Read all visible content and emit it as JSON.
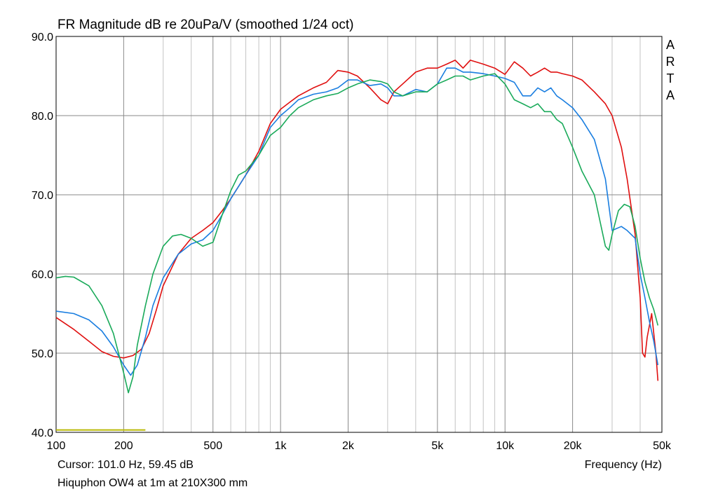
{
  "chart_data": {
    "type": "line",
    "title": "FR Magnitude dB re 20uPa/V (smoothed 1/24 oct)",
    "watermark": [
      "A",
      "R",
      "T",
      "A"
    ],
    "xlabel": "Frequency (Hz)",
    "xscale": "log",
    "xlim": [
      100,
      50000
    ],
    "ylim": [
      40,
      90
    ],
    "grid": true,
    "xticks": [
      {
        "value": 100,
        "label": "100"
      },
      {
        "value": 200,
        "label": "200"
      },
      {
        "value": 500,
        "label": "500"
      },
      {
        "value": 1000,
        "label": "1k"
      },
      {
        "value": 2000,
        "label": "2k"
      },
      {
        "value": 5000,
        "label": "5k"
      },
      {
        "value": 10000,
        "label": "10k"
      },
      {
        "value": 20000,
        "label": "20k"
      },
      {
        "value": 50000,
        "label": "50k"
      }
    ],
    "yticks": [
      {
        "value": 40,
        "label": "40.0"
      },
      {
        "value": 50,
        "label": "50.0"
      },
      {
        "value": 60,
        "label": "60.0"
      },
      {
        "value": 70,
        "label": "70.0"
      },
      {
        "value": 80,
        "label": "80.0"
      },
      {
        "value": 90,
        "label": "90.0"
      }
    ],
    "cursor": "Cursor: 101.0 Hz, 59.45 dB",
    "footer": "Hiquphon OW4 at 1m at 210X300 mm",
    "reference_line": {
      "color": "#b8b800",
      "x": [
        100,
        250
      ],
      "y": 40.3
    },
    "series": [
      {
        "color": "#e01010",
        "x": [
          100,
          120,
          140,
          160,
          180,
          200,
          220,
          240,
          260,
          280,
          300,
          350,
          400,
          450,
          500,
          550,
          600,
          700,
          800,
          900,
          1000,
          1100,
          1200,
          1400,
          1600,
          1800,
          2000,
          2200,
          2500,
          2800,
          3000,
          3200,
          3500,
          4000,
          4500,
          5000,
          5500,
          6000,
          6500,
          7000,
          8000,
          9000,
          10000,
          11000,
          12000,
          13000,
          14000,
          15000,
          16000,
          17000,
          18000,
          20000,
          22000,
          25000,
          28000,
          30000,
          33000,
          35000,
          38000,
          40000,
          41000,
          42000,
          43000,
          45000,
          47000,
          48000
        ],
        "y": [
          54.5,
          53.0,
          51.5,
          50.2,
          49.6,
          49.4,
          49.7,
          50.5,
          52.5,
          55.5,
          58.5,
          62.5,
          64.5,
          65.5,
          66.5,
          68.0,
          69.5,
          72.5,
          75.5,
          79.0,
          80.8,
          81.7,
          82.5,
          83.5,
          84.2,
          85.7,
          85.5,
          85.0,
          83.5,
          82.0,
          81.5,
          83.0,
          84.0,
          85.5,
          86.0,
          86.0,
          86.5,
          87.0,
          86.0,
          87.0,
          86.5,
          86.0,
          85.2,
          86.8,
          86.0,
          85.0,
          85.5,
          86.0,
          85.5,
          85.5,
          85.3,
          85.0,
          84.5,
          83.0,
          81.5,
          80.0,
          76.0,
          72.0,
          65.0,
          57.0,
          50.0,
          49.5,
          52.0,
          55.0,
          50.0,
          46.5
        ]
      },
      {
        "color": "#1a7ee0",
        "x": [
          100,
          120,
          140,
          160,
          180,
          200,
          215,
          230,
          250,
          270,
          300,
          350,
          400,
          450,
          500,
          550,
          600,
          700,
          800,
          900,
          1000,
          1100,
          1200,
          1400,
          1600,
          1800,
          2000,
          2200,
          2500,
          2800,
          3000,
          3200,
          3500,
          4000,
          4500,
          5000,
          5500,
          6000,
          6500,
          7000,
          8000,
          9000,
          10000,
          11000,
          12000,
          13000,
          14000,
          15000,
          16000,
          17000,
          18000,
          20000,
          22000,
          25000,
          28000,
          30000,
          33000,
          35000,
          38000,
          40000,
          42000,
          44000,
          46000,
          48000
        ],
        "y": [
          55.3,
          55.0,
          54.2,
          52.8,
          50.8,
          48.5,
          47.2,
          48.5,
          52.0,
          56.0,
          59.5,
          62.5,
          63.8,
          64.3,
          65.5,
          67.5,
          69.5,
          72.5,
          75.0,
          78.5,
          80.0,
          81.0,
          82.0,
          82.7,
          83.0,
          83.5,
          84.5,
          84.5,
          83.8,
          84.0,
          83.5,
          82.5,
          82.5,
          83.3,
          83.0,
          84.0,
          86.0,
          86.0,
          85.5,
          85.5,
          85.3,
          85.0,
          84.7,
          84.2,
          82.5,
          82.5,
          83.5,
          83.0,
          83.5,
          82.5,
          82.0,
          81.0,
          79.5,
          77.0,
          72.0,
          65.5,
          66.0,
          65.5,
          64.5,
          60.0,
          57.0,
          54.0,
          51.5,
          48.5
        ]
      },
      {
        "color": "#1aaa5a",
        "x": [
          100,
          110,
          120,
          140,
          160,
          180,
          200,
          210,
          220,
          230,
          250,
          270,
          300,
          330,
          360,
          400,
          450,
          500,
          550,
          600,
          650,
          700,
          800,
          900,
          1000,
          1100,
          1200,
          1400,
          1600,
          1800,
          2000,
          2200,
          2500,
          2800,
          3000,
          3200,
          3500,
          4000,
          4500,
          5000,
          5500,
          6000,
          6500,
          7000,
          8000,
          9000,
          10000,
          11000,
          12000,
          13000,
          14000,
          15000,
          16000,
          17000,
          18000,
          20000,
          22000,
          25000,
          28000,
          29000,
          30000,
          32000,
          34000,
          36000,
          38000,
          40000,
          42000,
          44000,
          46000,
          48000
        ],
        "y": [
          59.5,
          59.7,
          59.6,
          58.5,
          56.0,
          52.5,
          47.5,
          45.0,
          47.0,
          51.0,
          56.0,
          60.0,
          63.5,
          64.8,
          65.0,
          64.5,
          63.5,
          64.0,
          67.5,
          70.5,
          72.5,
          73.0,
          75.0,
          77.5,
          78.5,
          80.0,
          81.0,
          82.0,
          82.5,
          82.8,
          83.5,
          84.0,
          84.5,
          84.3,
          84.0,
          83.0,
          82.5,
          83.0,
          83.0,
          84.0,
          84.5,
          85.0,
          85.0,
          84.5,
          85.0,
          85.3,
          84.0,
          82.0,
          81.5,
          81.0,
          81.5,
          80.5,
          80.5,
          79.5,
          79.0,
          76.0,
          73.0,
          70.0,
          63.5,
          63.0,
          65.0,
          68.0,
          68.8,
          68.5,
          66.0,
          62.0,
          59.0,
          57.0,
          55.5,
          53.5
        ]
      }
    ]
  }
}
